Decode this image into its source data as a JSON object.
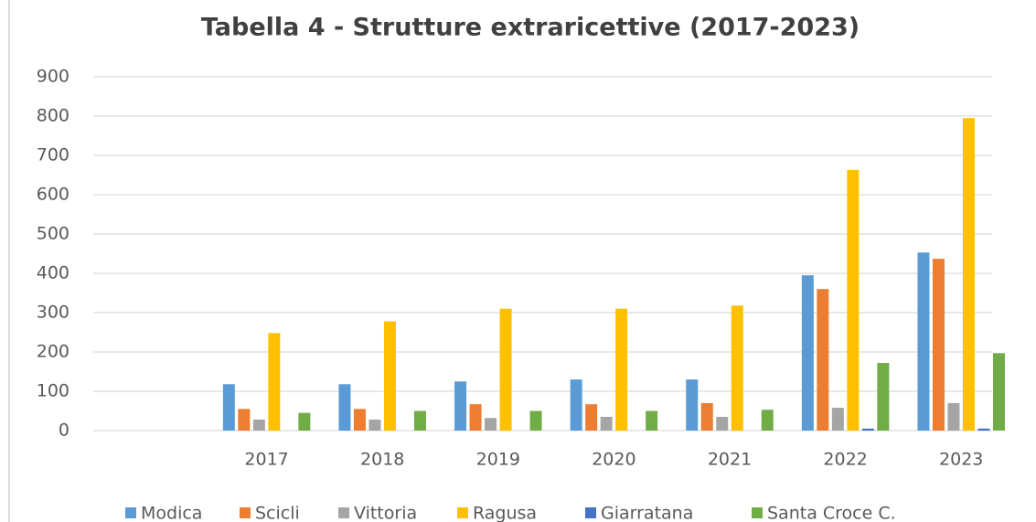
{
  "chart_data": {
    "type": "bar",
    "title": "Tabella 4 - Strutture extraricettive (2017-2023)",
    "categories": [
      null,
      "2017",
      "2018",
      "2019",
      "2020",
      "2021",
      "2022",
      "2023"
    ],
    "series": [
      {
        "name": "Modica",
        "color": "#5b9bd5",
        "values": [
          null,
          118,
          118,
          125,
          130,
          130,
          395,
          453
        ]
      },
      {
        "name": "Scicli",
        "color": "#ed7d31",
        "values": [
          null,
          55,
          55,
          67,
          67,
          70,
          360,
          437
        ]
      },
      {
        "name": "Vittoria",
        "color": "#a5a5a5",
        "values": [
          null,
          28,
          28,
          32,
          35,
          35,
          58,
          70
        ]
      },
      {
        "name": "Ragusa",
        "color": "#ffc000",
        "values": [
          null,
          248,
          278,
          310,
          310,
          318,
          663,
          795
        ]
      },
      {
        "name": "Giarratana",
        "color": "#4472c4",
        "values": [
          null,
          0,
          0,
          0,
          0,
          0,
          5,
          5
        ]
      },
      {
        "name": "Santa Croce C.",
        "color": "#70ad47",
        "values": [
          null,
          45,
          50,
          50,
          50,
          53,
          172,
          197
        ]
      }
    ],
    "ylim": [
      0,
      900
    ],
    "yticks": [
      0,
      100,
      200,
      300,
      400,
      500,
      600,
      700,
      800,
      900
    ],
    "grid": true,
    "legend": "bottom"
  }
}
